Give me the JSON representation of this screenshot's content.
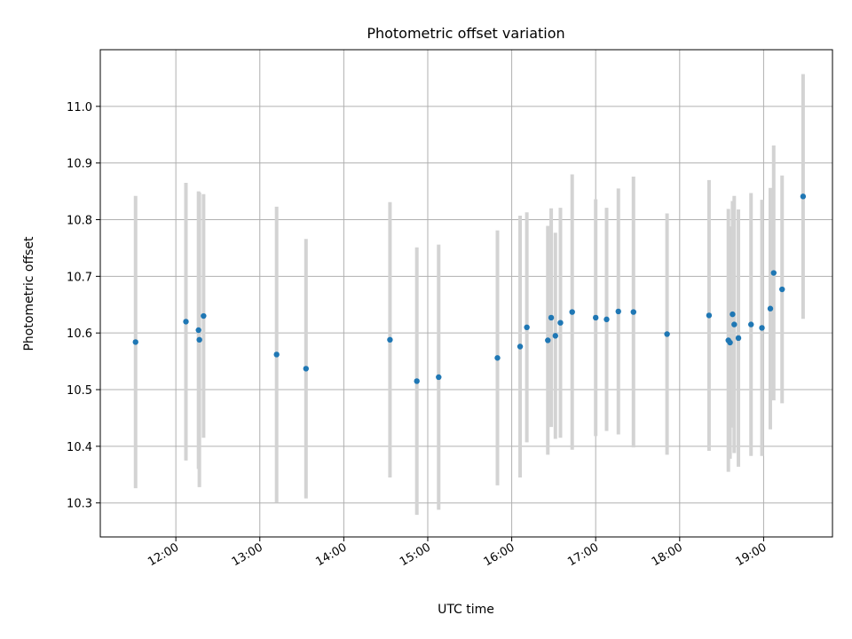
{
  "chart_data": {
    "type": "scatter",
    "title": "Photometric offset variation",
    "xlabel": "UTC time",
    "ylabel": "Photometric offset",
    "x_unit": "hours UTC",
    "xlim": [
      11.1,
      19.82
    ],
    "ylim": [
      10.24,
      11.1
    ],
    "x_ticks": [
      {
        "value": 12,
        "label": "12:00"
      },
      {
        "value": 13,
        "label": "13:00"
      },
      {
        "value": 14,
        "label": "14:00"
      },
      {
        "value": 15,
        "label": "15:00"
      },
      {
        "value": 16,
        "label": "16:00"
      },
      {
        "value": 17,
        "label": "17:00"
      },
      {
        "value": 18,
        "label": "18:00"
      },
      {
        "value": 19,
        "label": "19:00"
      }
    ],
    "y_ticks": [
      {
        "value": 10.3,
        "label": "10.3"
      },
      {
        "value": 10.4,
        "label": "10.4"
      },
      {
        "value": 10.5,
        "label": "10.5"
      },
      {
        "value": 10.6,
        "label": "10.6"
      },
      {
        "value": 10.7,
        "label": "10.7"
      },
      {
        "value": 10.8,
        "label": "10.8"
      },
      {
        "value": 10.9,
        "label": "10.9"
      },
      {
        "value": 11.0,
        "label": "11.0"
      }
    ],
    "grid": true,
    "point_color": "#1f77b4",
    "errorbar_color": "#d3d3d3",
    "points": [
      {
        "x": 11.52,
        "y": 10.584,
        "err": 0.258
      },
      {
        "x": 12.12,
        "y": 10.62,
        "err": 0.245
      },
      {
        "x": 12.27,
        "y": 10.605,
        "err": 0.245
      },
      {
        "x": 12.28,
        "y": 10.588,
        "err": 0.26
      },
      {
        "x": 12.33,
        "y": 10.63,
        "err": 0.215
      },
      {
        "x": 13.2,
        "y": 10.562,
        "err": 0.261
      },
      {
        "x": 13.55,
        "y": 10.537,
        "err": 0.229
      },
      {
        "x": 14.55,
        "y": 10.588,
        "err": 0.243
      },
      {
        "x": 14.87,
        "y": 10.515,
        "err": 0.236
      },
      {
        "x": 15.13,
        "y": 10.522,
        "err": 0.234
      },
      {
        "x": 15.83,
        "y": 10.556,
        "err": 0.225
      },
      {
        "x": 16.1,
        "y": 10.576,
        "err": 0.231
      },
      {
        "x": 16.18,
        "y": 10.61,
        "err": 0.203
      },
      {
        "x": 16.43,
        "y": 10.587,
        "err": 0.202
      },
      {
        "x": 16.47,
        "y": 10.627,
        "err": 0.193
      },
      {
        "x": 16.52,
        "y": 10.595,
        "err": 0.182
      },
      {
        "x": 16.58,
        "y": 10.618,
        "err": 0.203
      },
      {
        "x": 16.72,
        "y": 10.637,
        "err": 0.243
      },
      {
        "x": 17.0,
        "y": 10.627,
        "err": 0.209
      },
      {
        "x": 17.13,
        "y": 10.624,
        "err": 0.197
      },
      {
        "x": 17.27,
        "y": 10.638,
        "err": 0.217
      },
      {
        "x": 17.45,
        "y": 10.637,
        "err": 0.239
      },
      {
        "x": 17.85,
        "y": 10.598,
        "err": 0.213
      },
      {
        "x": 18.35,
        "y": 10.631,
        "err": 0.239
      },
      {
        "x": 18.58,
        "y": 10.587,
        "err": 0.232
      },
      {
        "x": 18.6,
        "y": 10.583,
        "err": 0.205
      },
      {
        "x": 18.63,
        "y": 10.633,
        "err": 0.2
      },
      {
        "x": 18.65,
        "y": 10.615,
        "err": 0.227
      },
      {
        "x": 18.7,
        "y": 10.591,
        "err": 0.227
      },
      {
        "x": 18.85,
        "y": 10.615,
        "err": 0.232
      },
      {
        "x": 18.98,
        "y": 10.609,
        "err": 0.226
      },
      {
        "x": 19.08,
        "y": 10.643,
        "err": 0.213
      },
      {
        "x": 19.12,
        "y": 10.706,
        "err": 0.225
      },
      {
        "x": 19.22,
        "y": 10.677,
        "err": 0.201
      },
      {
        "x": 19.47,
        "y": 10.841,
        "err": 0.216
      }
    ]
  }
}
